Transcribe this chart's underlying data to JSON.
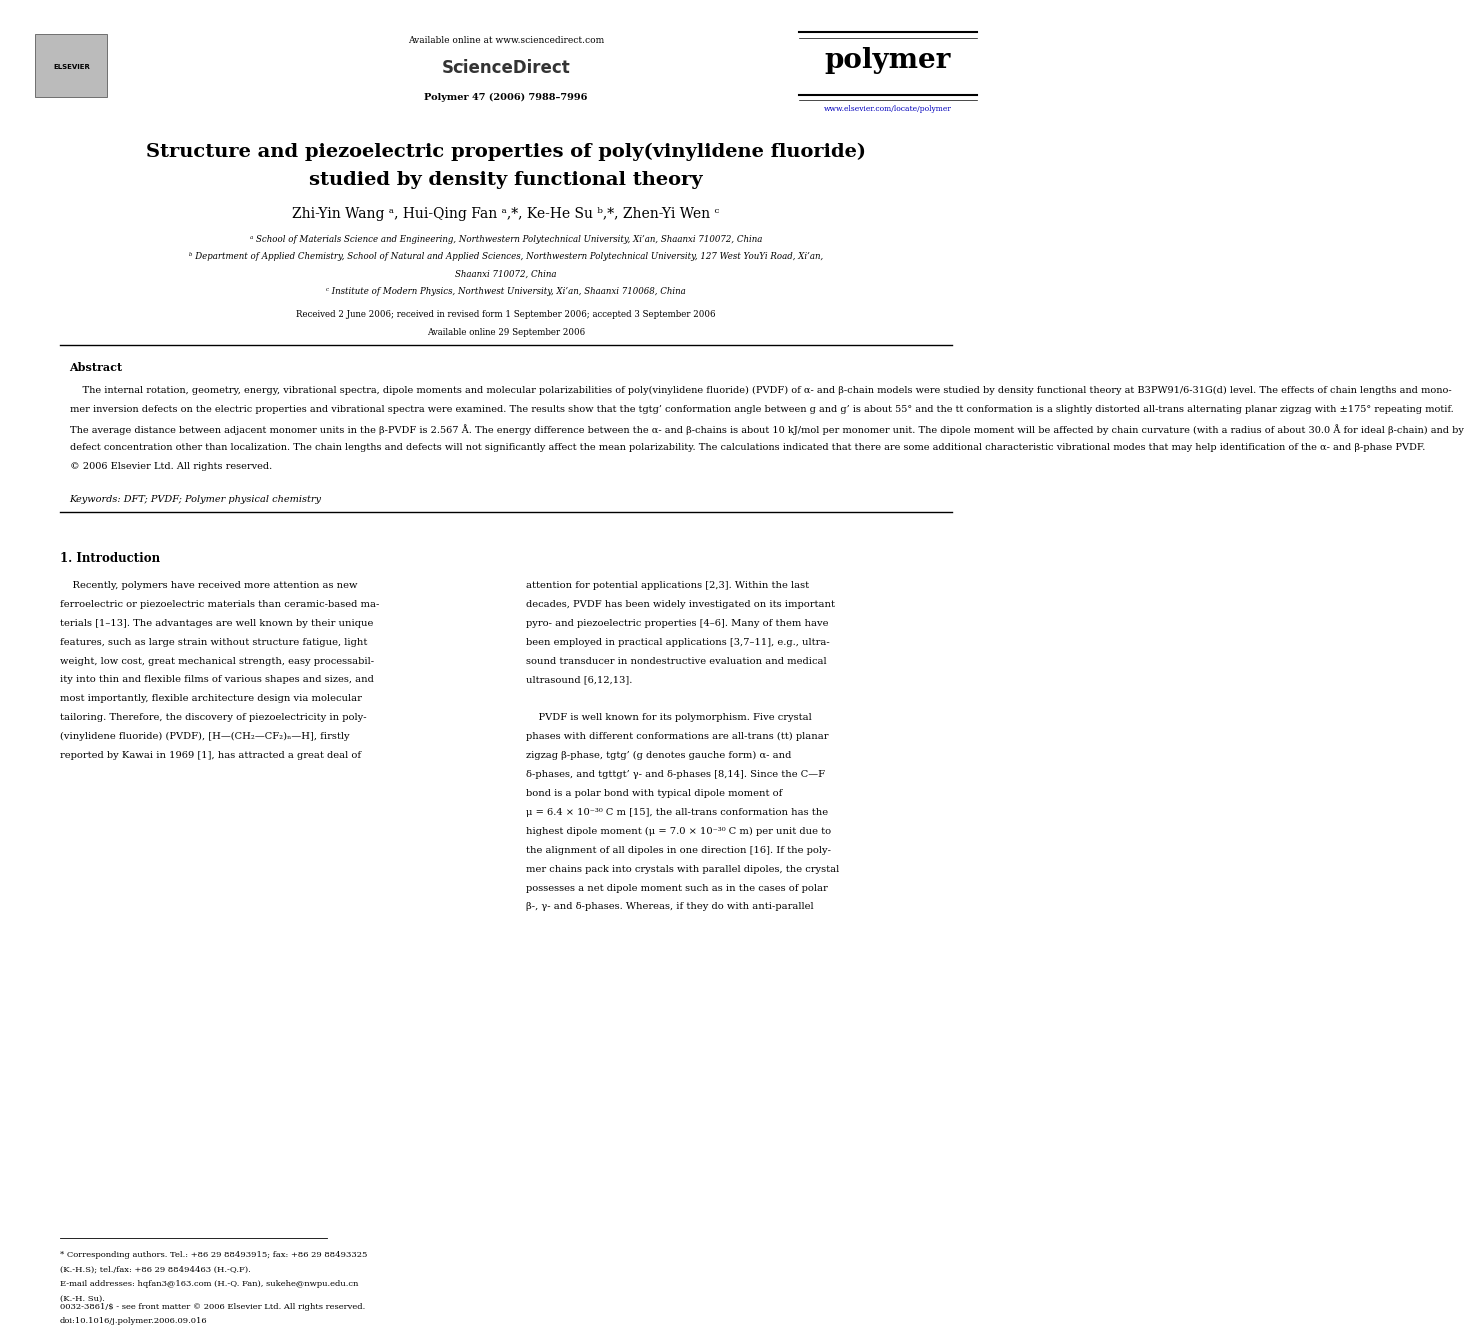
{
  "page_width": 9.92,
  "page_height": 13.23,
  "background": "#ffffff",
  "paper_title_line1": "Structure and piezoelectric properties of poly(vinylidene fluoride)",
  "paper_title_line2": "studied by density functional theory",
  "authors": "Zhi-Yin Wang ᵃ, Hui-Qing Fan ᵃ,*, Ke-He Su ᵇ,*, Zhen-Yi Wen ᶜ",
  "affil_a": "ᵃ School of Materials Science and Engineering, Northwestern Polytechnical University, Xi’an, Shaanxi 710072, China",
  "affil_b": "ᵇ Department of Applied Chemistry, School of Natural and Applied Sciences, Northwestern Polytechnical University, 127 West YouYi Road, Xi’an,",
  "affil_b2": "Shaanxi 710072, China",
  "affil_c": "ᶜ Institute of Modern Physics, Northwest University, Xi’an, Shaanxi 710068, China",
  "received": "Received 2 June 2006; received in revised form 1 September 2006; accepted 3 September 2006",
  "available": "Available online 29 September 2006",
  "abstract_lines": [
    "    The internal rotation, geometry, energy, vibrational spectra, dipole moments and molecular polarizabilities of poly(vinylidene fluoride) (PVDF) of α- and β-chain models were studied by density functional theory at B3PW91/6-31G(d) level. The effects of chain lengths and mono-",
    "mer inversion defects on the electric properties and vibrational spectra were examined. The results show that the tgtg’ conformation angle between g and g’ is about 55° and the tt conformation is a slightly distorted all-trans alternating planar zigzag with ±175° repeating motif.",
    "The average distance between adjacent monomer units in the β-PVDF is 2.567 Å. The energy difference between the α- and β-chains is about 10 kJ/mol per monomer unit. The dipole moment will be affected by chain curvature (with a radius of about 30.0 Å for ideal β-chain) and by",
    "defect concentration other than localization. The chain lengths and defects will not significantly affect the mean polarizability. The calculations indicated that there are some additional characteristic vibrational modes that may help identification of the α- and β-phase PVDF.",
    "© 2006 Elsevier Ltd. All rights reserved."
  ],
  "keywords": "Keywords: DFT; PVDF; Polymer physical chemistry",
  "col1_lines": [
    "    Recently, polymers have received more attention as new",
    "ferroelectric or piezoelectric materials than ceramic-based ma-",
    "terials [1–13]. The advantages are well known by their unique",
    "features, such as large strain without structure fatigue, light",
    "weight, low cost, great mechanical strength, easy processabil-",
    "ity into thin and flexible films of various shapes and sizes, and",
    "most importantly, flexible architecture design via molecular",
    "tailoring. Therefore, the discovery of piezoelectricity in poly-",
    "(vinylidene fluoride) (PVDF), [H—(CH₂—CF₂)ₙ—H], firstly",
    "reported by Kawai in 1969 [1], has attracted a great deal of"
  ],
  "col2_lines1": [
    "attention for potential applications [2,3]. Within the last",
    "decades, PVDF has been widely investigated on its important",
    "pyro- and piezoelectric properties [4–6]. Many of them have",
    "been employed in practical applications [3,7–11], e.g., ultra-",
    "sound transducer in nondestructive evaluation and medical",
    "ultrasound [6,12,13]."
  ],
  "col2_lines2": [
    "    PVDF is well known for its polymorphism. Five crystal",
    "phases with different conformations are all-trans (tt) planar",
    "zigzag β-phase, tgtg’ (g denotes gauche form) α- and",
    "δ-phases, and tgttgt’ γ- and δ-phases [8,14]. Since the C—F",
    "bond is a polar bond with typical dipole moment of",
    "μ = 6.4 × 10⁻³⁰ C m [15], the all-trans conformation has the",
    "highest dipole moment (μ = 7.0 × 10⁻³⁰ C m) per unit due to",
    "the alignment of all dipoles in one direction [16]. If the poly-",
    "mer chains pack into crystals with parallel dipoles, the crystal",
    "possesses a net dipole moment such as in the cases of polar",
    "β-, γ- and δ-phases. Whereas, if they do with anti-parallel"
  ]
}
